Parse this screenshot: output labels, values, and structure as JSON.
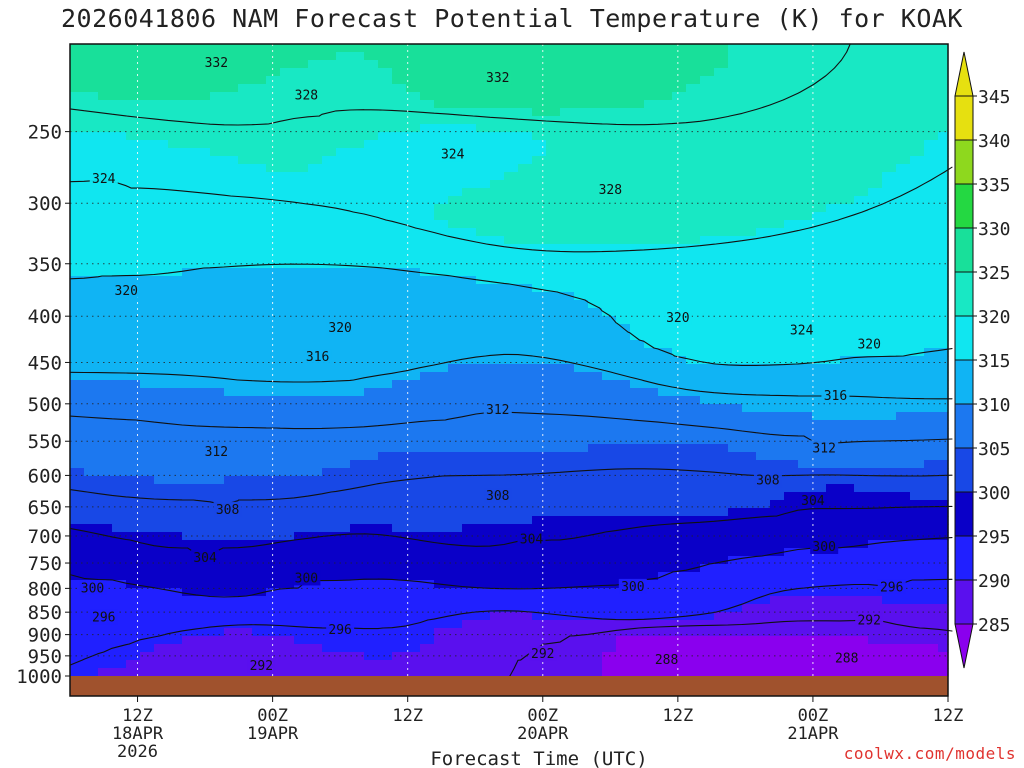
{
  "chart_data": {
    "type": "heatmap",
    "title": "2026041806 NAM Forecast Potential Temperature (K) for KOAK",
    "xlabel": "Forecast Time (UTC)",
    "ylabel": "",
    "credit": "coolwx.com/models",
    "y_axis": {
      "scale": "log-pressure",
      "range_hpa": [
        1000,
        200
      ],
      "tick_labels": [
        {
          "value": 250,
          "label": "250"
        },
        {
          "value": 300,
          "label": "300"
        },
        {
          "value": 350,
          "label": "350"
        },
        {
          "value": 400,
          "label": "400"
        },
        {
          "value": 450,
          "label": "450"
        },
        {
          "value": 500,
          "label": "500"
        },
        {
          "value": 550,
          "label": "550"
        },
        {
          "value": 600,
          "label": "600"
        },
        {
          "value": 650,
          "label": "650"
        },
        {
          "value": 700,
          "label": "700"
        },
        {
          "value": 750,
          "label": "750"
        },
        {
          "value": 800,
          "label": "800"
        },
        {
          "value": 850,
          "label": "850"
        },
        {
          "value": 900,
          "label": "900"
        },
        {
          "value": 950,
          "label": "950"
        },
        {
          "value": 1000,
          "label": "1000"
        }
      ]
    },
    "x_axis": {
      "range_hours": [
        6,
        84
      ],
      "ticks": [
        {
          "hour": 12,
          "lines": [
            "12Z",
            "18APR",
            "2026"
          ]
        },
        {
          "hour": 24,
          "lines": [
            "00Z",
            "19APR"
          ]
        },
        {
          "hour": 36,
          "lines": [
            "12Z"
          ]
        },
        {
          "hour": 48,
          "lines": [
            "00Z",
            "20APR"
          ]
        },
        {
          "hour": 60,
          "lines": [
            "12Z"
          ]
        },
        {
          "hour": 72,
          "lines": [
            "00Z",
            "21APR"
          ]
        },
        {
          "hour": 84,
          "lines": [
            "12Z"
          ]
        }
      ]
    },
    "grid": true,
    "colorbar": {
      "levels": [
        285,
        290,
        295,
        300,
        305,
        310,
        315,
        320,
        325,
        330,
        335,
        340,
        345
      ],
      "colors": [
        "#8a00ee",
        "#5a10ee",
        "#2020ff",
        "#0a00c8",
        "#1848e6",
        "#1c78f0",
        "#10b4f4",
        "#10e6f0",
        "#18e8c4",
        "#18e09a",
        "#24d842",
        "#8ed81e",
        "#e6e010"
      ]
    },
    "contours": {
      "interval": 4,
      "labeled": [
        {
          "value": 332,
          "hour": 19,
          "p": 210
        },
        {
          "value": 332,
          "hour": 44,
          "p": 218
        },
        {
          "value": 328,
          "hour": 27,
          "p": 228
        },
        {
          "value": 328,
          "hour": 54,
          "p": 290
        },
        {
          "value": 324,
          "hour": 9,
          "p": 282
        },
        {
          "value": 324,
          "hour": 40,
          "p": 265
        },
        {
          "value": 324,
          "hour": 71,
          "p": 415
        },
        {
          "value": 320,
          "hour": 11,
          "p": 375
        },
        {
          "value": 320,
          "hour": 30,
          "p": 412
        },
        {
          "value": 320,
          "hour": 60,
          "p": 402
        },
        {
          "value": 320,
          "hour": 77,
          "p": 430
        },
        {
          "value": 316,
          "hour": 28,
          "p": 444
        },
        {
          "value": 316,
          "hour": 74,
          "p": 490
        },
        {
          "value": 312,
          "hour": 19,
          "p": 565
        },
        {
          "value": 312,
          "hour": 44,
          "p": 508
        },
        {
          "value": 312,
          "hour": 73,
          "p": 560
        },
        {
          "value": 308,
          "hour": 20,
          "p": 655
        },
        {
          "value": 308,
          "hour": 44,
          "p": 632
        },
        {
          "value": 308,
          "hour": 68,
          "p": 608
        },
        {
          "value": 304,
          "hour": 18,
          "p": 740
        },
        {
          "value": 304,
          "hour": 47,
          "p": 706
        },
        {
          "value": 304,
          "hour": 72,
          "p": 640
        },
        {
          "value": 300,
          "hour": 8,
          "p": 800
        },
        {
          "value": 300,
          "hour": 27,
          "p": 780
        },
        {
          "value": 300,
          "hour": 56,
          "p": 797
        },
        {
          "value": 300,
          "hour": 73,
          "p": 720
        },
        {
          "value": 296,
          "hour": 9,
          "p": 862
        },
        {
          "value": 296,
          "hour": 30,
          "p": 890
        },
        {
          "value": 296,
          "hour": 79,
          "p": 798
        },
        {
          "value": 292,
          "hour": 23,
          "p": 975
        },
        {
          "value": 292,
          "hour": 48,
          "p": 945
        },
        {
          "value": 292,
          "hour": 77,
          "p": 868
        },
        {
          "value": 288,
          "hour": 59,
          "p": 960
        },
        {
          "value": 288,
          "hour": 75,
          "p": 956
        }
      ]
    }
  }
}
